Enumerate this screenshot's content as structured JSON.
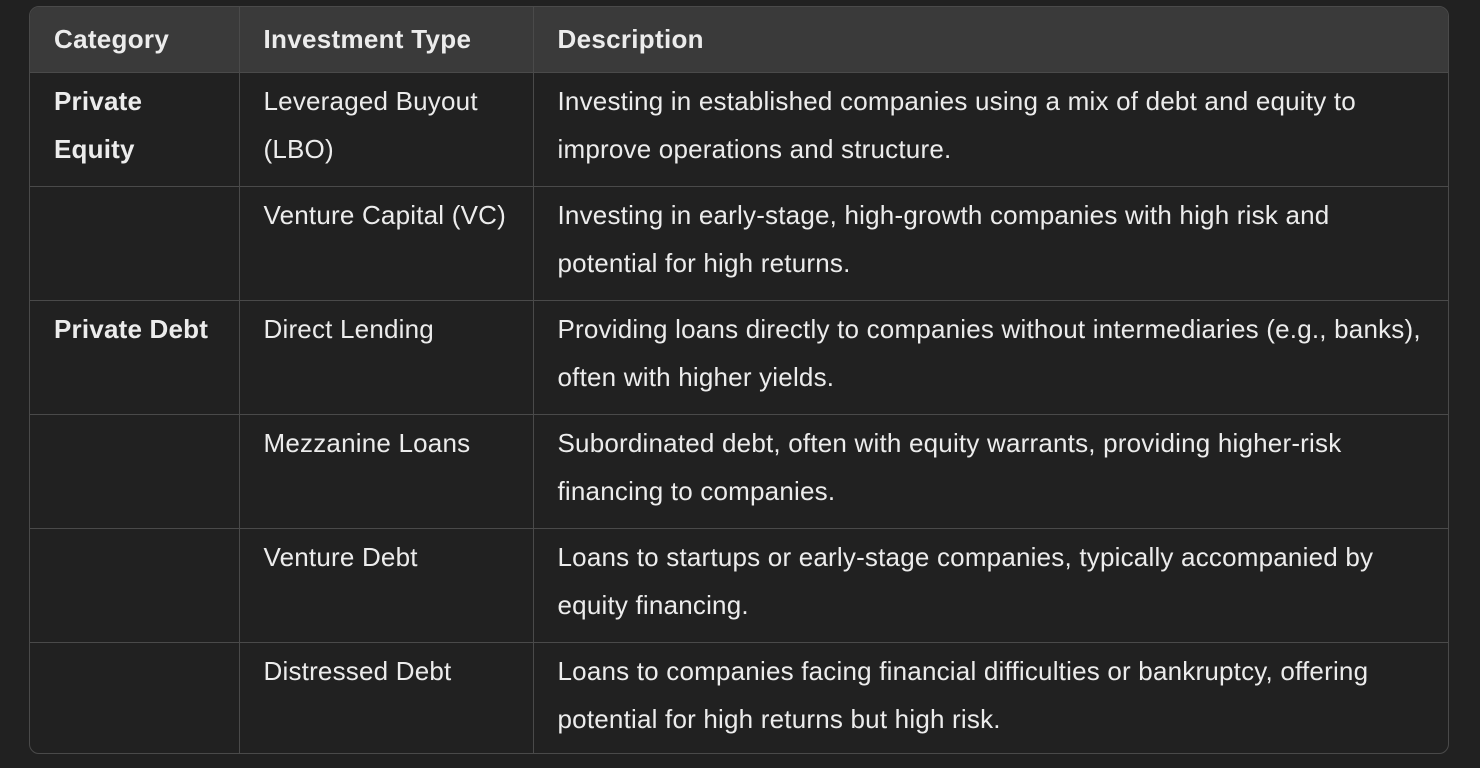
{
  "table": {
    "headers": [
      "Category",
      "Investment Type",
      "Description"
    ],
    "rows": [
      {
        "category": "Private Equity",
        "type": "Leveraged Buyout (LBO)",
        "description": "Investing in established companies using a mix of debt and equity to improve operations and structure."
      },
      {
        "category": "",
        "type": "Venture Capital (VC)",
        "description": "Investing in early-stage, high-growth companies with high risk and potential for high returns."
      },
      {
        "category": "Private Debt",
        "type": "Direct Lending",
        "description": "Providing loans directly to companies without intermediaries (e.g., banks), often with higher yields."
      },
      {
        "category": "",
        "type": "Mezzanine Loans",
        "description": "Subordinated debt, often with equity warrants, providing higher-risk financing to companies."
      },
      {
        "category": "",
        "type": "Venture Debt",
        "description": "Loans to startups or early-stage companies, typically accompanied by equity financing."
      },
      {
        "category": "",
        "type": "Distressed Debt",
        "description": "Loans to companies facing financial difficulties or bankruptcy, offering potential for high returns but high risk."
      }
    ]
  }
}
